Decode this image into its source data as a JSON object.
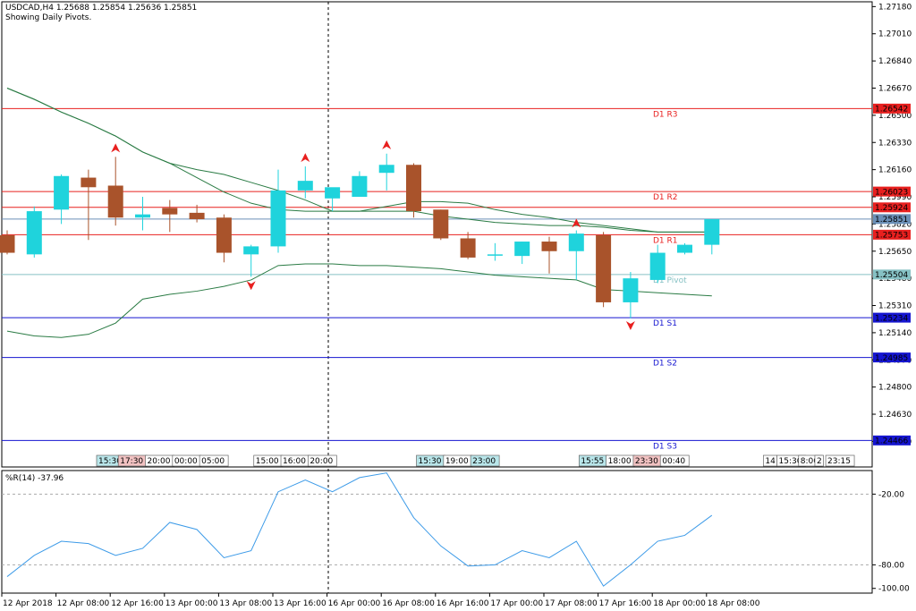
{
  "header": {
    "symbol_line": "USDCAD,H4  1.25688 1.25854 1.25636 1.25851",
    "subtitle": "Showing Daily Pivots."
  },
  "indicator": {
    "label": "%R(14) -37.96"
  },
  "colors": {
    "bull": "#1fd3dc",
    "bear": "#a9532b",
    "resistance": "#e8201f",
    "support": "#1515d0",
    "pivot": "#86c1c4",
    "band": "#2a7b44",
    "wpr": "#3d9be8",
    "price_badge": "#6b8fb6"
  },
  "chart_data": [
    {
      "type": "candlestick",
      "title": "",
      "ylim": [
        1.243,
        1.2721
      ],
      "y_ticks": [
        "1.27180",
        "1.27010",
        "1.26840",
        "1.26670",
        "1.26500",
        "1.26330",
        "1.26160",
        "1.25990",
        "1.25820",
        "1.25650",
        "1.25480",
        "1.25310",
        "1.25140",
        "1.24970",
        "1.24800",
        "1.24630",
        "1.24460"
      ],
      "x_labels": [
        "12 Apr 2018",
        "12 Apr 08:00",
        "12 Apr 16:00",
        "13 Apr 00:00",
        "13 Apr 08:00",
        "13 Apr 16:00",
        "16 Apr 00:00",
        "16 Apr 08:00",
        "16 Apr 16:00",
        "17 Apr 00:00",
        "17 Apr 08:00",
        "17 Apr 16:00",
        "18 Apr 00:00",
        "18 Apr 08:00"
      ],
      "candles": [
        {
          "o": 1.2575,
          "h": 1.2578,
          "l": 1.2563,
          "c": 1.2564
        },
        {
          "o": 1.2563,
          "h": 1.2593,
          "l": 1.2561,
          "c": 1.259
        },
        {
          "o": 1.2591,
          "h": 1.2613,
          "l": 1.2582,
          "c": 1.2612
        },
        {
          "o": 1.2611,
          "h": 1.2616,
          "l": 1.2572,
          "c": 1.2605
        },
        {
          "o": 1.2606,
          "h": 1.2624,
          "l": 1.2581,
          "c": 1.2586
        },
        {
          "o": 1.2586,
          "h": 1.2599,
          "l": 1.2578,
          "c": 1.2588
        },
        {
          "o": 1.2592,
          "h": 1.2597,
          "l": 1.2577,
          "c": 1.2588
        },
        {
          "o": 1.2589,
          "h": 1.2594,
          "l": 1.2583,
          "c": 1.2585
        },
        {
          "o": 1.2586,
          "h": 1.2588,
          "l": 1.2558,
          "c": 1.2564
        },
        {
          "o": 1.2563,
          "h": 1.2569,
          "l": 1.2549,
          "c": 1.2568
        },
        {
          "o": 1.2568,
          "h": 1.2616,
          "l": 1.2564,
          "c": 1.2603
        },
        {
          "o": 1.2603,
          "h": 1.2618,
          "l": 1.2598,
          "c": 1.2609
        },
        {
          "o": 1.2598,
          "h": 1.2603,
          "l": 1.259,
          "c": 1.2605
        },
        {
          "o": 1.2599,
          "h": 1.2615,
          "l": 1.2599,
          "c": 1.2612
        },
        {
          "o": 1.2614,
          "h": 1.2626,
          "l": 1.2603,
          "c": 1.2619
        },
        {
          "o": 1.2619,
          "h": 1.262,
          "l": 1.2586,
          "c": 1.259
        },
        {
          "o": 1.2591,
          "h": 1.2591,
          "l": 1.2572,
          "c": 1.2573
        },
        {
          "o": 1.2573,
          "h": 1.2577,
          "l": 1.256,
          "c": 1.2561
        },
        {
          "o": 1.2563,
          "h": 1.257,
          "l": 1.2559,
          "c": 1.2563
        },
        {
          "o": 1.2562,
          "h": 1.2571,
          "l": 1.2557,
          "c": 1.2571
        },
        {
          "o": 1.2571,
          "h": 1.2574,
          "l": 1.2551,
          "c": 1.2565
        },
        {
          "o": 1.2565,
          "h": 1.2578,
          "l": 1.2547,
          "c": 1.2576
        },
        {
          "o": 1.2575,
          "h": 1.2577,
          "l": 1.253,
          "c": 1.2533
        },
        {
          "o": 1.2533,
          "h": 1.2552,
          "l": 1.2523,
          "c": 1.2548
        },
        {
          "o": 1.2547,
          "h": 1.2569,
          "l": 1.2545,
          "c": 1.2564
        },
        {
          "o": 1.2564,
          "h": 1.257,
          "l": 1.2563,
          "c": 1.2569
        },
        {
          "o": 1.2569,
          "h": 1.2585,
          "l": 1.2563,
          "c": 1.2585
        }
      ],
      "pivot_levels": [
        {
          "label": "D1 R3",
          "value": 1.26542,
          "badge": "1.26542",
          "kind": "resistance"
        },
        {
          "label": "D1 R2",
          "value": 1.26023,
          "badge": "1.26023",
          "kind": "resistance"
        },
        {
          "label": "D1 R1",
          "value": 1.25753,
          "badge": "1.25753",
          "kind": "resistance"
        },
        {
          "label": "D1 Pivot",
          "value": 1.25504,
          "badge": "1.25504",
          "kind": "pivot"
        },
        {
          "label": "D1 S1",
          "value": 1.25234,
          "badge": "1.25234",
          "kind": "support"
        },
        {
          "label": "D1 S2",
          "value": 1.24985,
          "badge": "1.24985",
          "kind": "support"
        },
        {
          "label": "D1 S3",
          "value": 1.24466,
          "badge": "1.24466",
          "kind": "support"
        }
      ],
      "price_badges": [
        {
          "value": 1.25924,
          "badge": "1.25924",
          "kind": "resistance"
        },
        {
          "value": 1.25851,
          "badge": "1.25851",
          "kind": "price"
        }
      ],
      "bands": {
        "upper": [
          1.2667,
          1.266,
          1.2652,
          1.2645,
          1.2637,
          1.2627,
          1.262,
          1.2616,
          1.2613,
          1.2608,
          1.2603,
          1.2597,
          1.259,
          1.259,
          1.2593,
          1.2596,
          1.2596,
          1.2595,
          1.2591,
          1.2588,
          1.2586,
          1.2583,
          1.2581,
          1.2579,
          1.2577,
          1.2577,
          1.2577
        ],
        "middle": [
          1.2667,
          1.266,
          1.2652,
          1.2645,
          1.2637,
          1.2627,
          1.262,
          1.2611,
          1.2602,
          1.2595,
          1.2591,
          1.259,
          1.259,
          1.259,
          1.259,
          1.259,
          1.2587,
          1.2585,
          1.2583,
          1.2582,
          1.2581,
          1.2581,
          1.258,
          1.2578,
          1.2577,
          1.2577,
          1.2577
        ],
        "lower": [
          1.2515,
          1.2512,
          1.2511,
          1.2513,
          1.252,
          1.2535,
          1.2538,
          1.254,
          1.2543,
          1.2547,
          1.2556,
          1.2557,
          1.2557,
          1.2556,
          1.2556,
          1.2555,
          1.2554,
          1.2552,
          1.255,
          1.2549,
          1.2548,
          1.2547,
          1.2541,
          1.254,
          1.2539,
          1.2538,
          1.2537
        ]
      },
      "fractals": [
        {
          "i": 4,
          "dir": "up",
          "value": 1.2629
        },
        {
          "i": 9,
          "dir": "down",
          "value": 1.2544
        },
        {
          "i": 11,
          "dir": "up",
          "value": 1.2623
        },
        {
          "i": 14,
          "dir": "up",
          "value": 1.2631
        },
        {
          "i": 21,
          "dir": "up",
          "value": 1.2582
        },
        {
          "i": 23,
          "dir": "down",
          "value": 1.2519
        }
      ],
      "session_badges": [
        {
          "label": "15:30",
          "style": "bull",
          "i": 3.3
        },
        {
          "label": "17:30",
          "style": "bear",
          "i": 4.1
        },
        {
          "label": "20:00",
          "style": "plain",
          "i": 5.1
        },
        {
          "label": "00:00",
          "style": "plain",
          "i": 6.1
        },
        {
          "label": "05:00",
          "style": "plain",
          "i": 7.1
        },
        {
          "label": "15:00",
          "style": "plain",
          "i": 9.1
        },
        {
          "label": "16:00",
          "style": "plain",
          "i": 10.1
        },
        {
          "label": "20:00",
          "style": "plain",
          "i": 11.1
        },
        {
          "label": "15:30",
          "style": "bull",
          "i": 15.1
        },
        {
          "label": "19:00",
          "style": "plain",
          "i": 16.1
        },
        {
          "label": "23:00",
          "style": "bull",
          "i": 17.1
        },
        {
          "label": "15:55",
          "style": "bull",
          "i": 21.1
        },
        {
          "label": "18:00",
          "style": "plain",
          "i": 22.1
        },
        {
          "label": "23:30",
          "style": "bear",
          "i": 23.1
        },
        {
          "label": "00:40",
          "style": "plain",
          "i": 24.1
        },
        {
          "label": "14",
          "style": "plain",
          "i": 27.9
        },
        {
          "label": "15:30",
          "style": "plain",
          "i": 28.4
        },
        {
          "label": "8:00",
          "style": "plain",
          "i": 29.2
        },
        {
          "label": "2",
          "style": "plain",
          "i": 29.8
        },
        {
          "label": "23:15",
          "style": "plain",
          "i": 30.2
        }
      ]
    },
    {
      "type": "line",
      "title": "",
      "ylim": [
        -104,
        0
      ],
      "y_ticks": [
        "-20.00",
        "-80.00",
        "-100.00"
      ],
      "series": [
        {
          "values": [
            -90,
            -72,
            -60,
            -62,
            -72,
            -66,
            -44,
            -50,
            -74,
            -68,
            -18,
            -8,
            -18,
            -6,
            -2,
            -40,
            -64,
            -81,
            -80,
            -68,
            -74,
            -60,
            -98,
            -80,
            -60,
            -55,
            -38
          ]
        }
      ]
    }
  ]
}
